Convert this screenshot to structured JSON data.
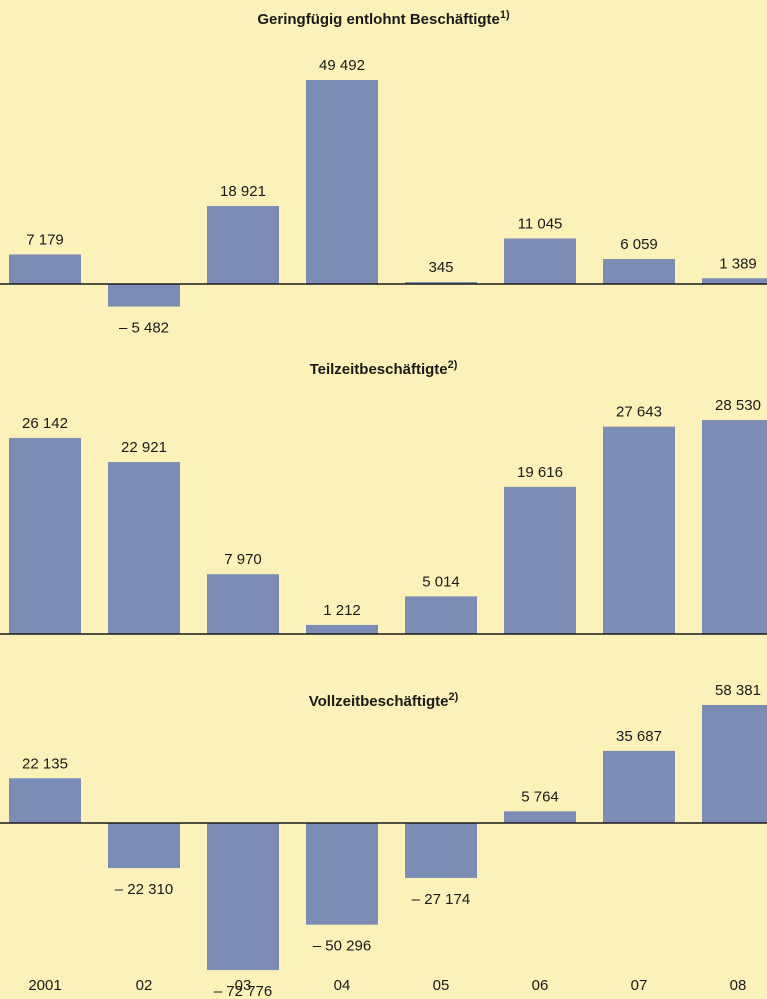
{
  "colors": {
    "background": "#fdf1ba",
    "bar": "#7b8db5",
    "axis": "#1a1a1a",
    "text": "#1a1a1a"
  },
  "chart_data": [
    {
      "type": "bar",
      "title": "Geringfügig entlohnt Beschäftigte",
      "title_note": "1)",
      "categories": [
        "2001",
        "02",
        "03",
        "04",
        "05",
        "06",
        "07",
        "08"
      ],
      "values": [
        7179,
        -5482,
        18921,
        49492,
        345,
        11045,
        6059,
        1389
      ],
      "value_labels": [
        "7 179",
        "– 5 482",
        "18 921",
        "49 492",
        "345",
        "11 045",
        "6 059",
        "1 389"
      ],
      "xlabel": "",
      "ylabel": "",
      "ylim": [
        -10000,
        60000
      ],
      "grid": false
    },
    {
      "type": "bar",
      "title": "Teilzeitbeschäftigte",
      "title_note": "2)",
      "categories": [
        "2001",
        "02",
        "03",
        "04",
        "05",
        "06",
        "07",
        "08"
      ],
      "values": [
        26142,
        22921,
        7970,
        1212,
        5014,
        19616,
        27643,
        28530
      ],
      "value_labels": [
        "26 142",
        "22 921",
        "7 970",
        "1 212",
        "5 014",
        "19 616",
        "27 643",
        "28 530"
      ],
      "xlabel": "",
      "ylabel": "",
      "ylim": [
        0,
        30000
      ],
      "grid": false
    },
    {
      "type": "bar",
      "title": "Vollzeitbeschäftigte",
      "title_note": "2)",
      "categories": [
        "2001",
        "02",
        "03",
        "04",
        "05",
        "06",
        "07",
        "08"
      ],
      "values": [
        22135,
        -22310,
        -72776,
        -50296,
        -27174,
        5764,
        35687,
        58381
      ],
      "value_labels": [
        "22 135",
        "– 22 310",
        "– 72 776",
        "– 50 296",
        "– 27 174",
        "5 764",
        "35 687",
        "58 381"
      ],
      "xlabel": "",
      "ylabel": "",
      "ylim": [
        -80000,
        70000
      ],
      "grid": false
    }
  ],
  "x_axis_labels": [
    "2001",
    "02",
    "03",
    "04",
    "05",
    "06",
    "07",
    "08"
  ]
}
